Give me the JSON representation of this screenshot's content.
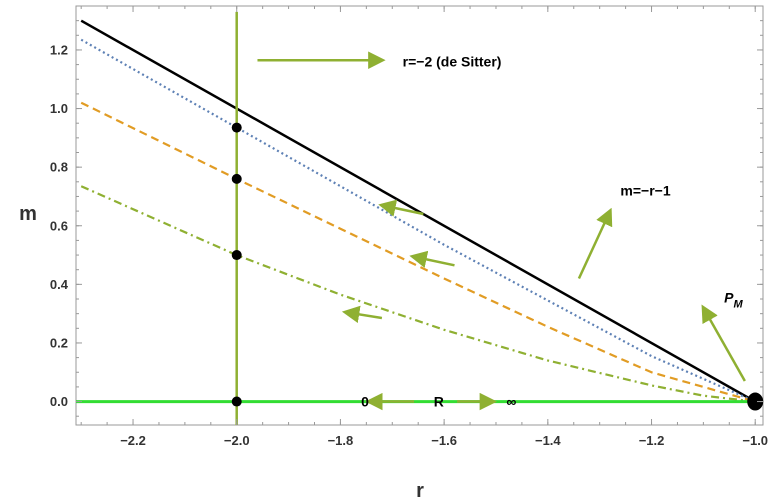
{
  "chart_data": {
    "type": "line",
    "title": "",
    "xlabel": "r",
    "ylabel": "m",
    "xlim": [
      -2.31,
      -0.985
    ],
    "ylim": [
      -0.08,
      1.35
    ],
    "xticks": [
      "-2.2",
      "-2.0",
      "-1.8",
      "-1.6",
      "-1.4",
      "-1.2",
      "-1.0"
    ],
    "yticks": [
      "0.0",
      "0.2",
      "0.4",
      "0.6",
      "0.8",
      "1.0",
      "1.2"
    ],
    "grid": false,
    "series": [
      {
        "key": "solid-black",
        "color": "#000000",
        "style": "solid",
        "x": [
          -2.3,
          -1.0
        ],
        "y": [
          1.3,
          0.0
        ]
      },
      {
        "key": "dotted-blue",
        "color": "#5e81b5",
        "style": "dotted",
        "x": [
          -2.3,
          -2.0,
          -1.6,
          -1.2,
          -1.0
        ],
        "y": [
          1.235,
          0.935,
          0.535,
          0.155,
          0.0
        ]
      },
      {
        "key": "dashed-orange",
        "color": "#e19c24",
        "style": "dashed",
        "x": [
          -2.3,
          -2.0,
          -1.8,
          -1.6,
          -1.4,
          -1.2,
          -1.0
        ],
        "y": [
          1.02,
          0.76,
          0.59,
          0.42,
          0.255,
          0.1,
          0.0
        ]
      },
      {
        "key": "dashdot-green",
        "color": "#8fb032",
        "style": "dashdot",
        "x": [
          -2.3,
          -2.0,
          -1.8,
          -1.6,
          -1.4,
          -1.2,
          -1.1,
          -1.0
        ],
        "y": [
          0.735,
          0.5,
          0.365,
          0.245,
          0.14,
          0.055,
          0.02,
          0.0
        ]
      },
      {
        "key": "vertical-de-sitter",
        "color": "#8fb032",
        "style": "solid",
        "x": [
          -2.0,
          -2.0
        ],
        "y": [
          -0.08,
          1.33
        ]
      },
      {
        "key": "horizontal-m0",
        "color": "#33dd33",
        "style": "solid",
        "x": [
          -2.31,
          -0.985
        ],
        "y": [
          0.0,
          0.0
        ]
      }
    ],
    "points": [
      {
        "x": -2.0,
        "y": 0.935
      },
      {
        "x": -2.0,
        "y": 0.76
      },
      {
        "x": -2.0,
        "y": 0.5
      },
      {
        "x": -2.0,
        "y": 0.0
      }
    ],
    "critical_point": {
      "x": -1.0,
      "y": 0.0
    },
    "annotations": [
      {
        "text": "r=−2 (de Sitter)",
        "x": -1.68,
        "y": 1.16
      },
      {
        "text": "m=−r−1",
        "x": -1.26,
        "y": 0.72
      },
      {
        "text": "0",
        "x": -1.76,
        "y": 0.0
      },
      {
        "text": "R",
        "x": -1.62,
        "y": 0.0
      },
      {
        "text": "∞",
        "x": -1.48,
        "y": 0.0
      }
    ],
    "pm_label": {
      "main": "P",
      "sub": "M",
      "x": -1.06,
      "y": 0.355
    },
    "arrows": [
      {
        "x1": -1.96,
        "y1": 1.165,
        "x2": -1.72,
        "y2": 1.165
      },
      {
        "x1": -1.34,
        "y1": 0.42,
        "x2": -1.28,
        "y2": 0.65
      },
      {
        "x1": -1.02,
        "y1": 0.07,
        "x2": -1.1,
        "y2": 0.32
      },
      {
        "x1": -1.658,
        "y1": 0.0,
        "x2": -1.745,
        "y2": 0.0
      },
      {
        "x1": -1.575,
        "y1": 0.0,
        "x2": -1.505,
        "y2": 0.0
      },
      {
        "x1": -1.64,
        "y1": 0.64,
        "x2": -1.72,
        "y2": 0.67
      },
      {
        "x1": -1.58,
        "y1": 0.465,
        "x2": -1.66,
        "y2": 0.495
      },
      {
        "x1": -1.72,
        "y1": 0.285,
        "x2": -1.79,
        "y2": 0.305
      }
    ],
    "arrow_color": "#8fb032"
  }
}
